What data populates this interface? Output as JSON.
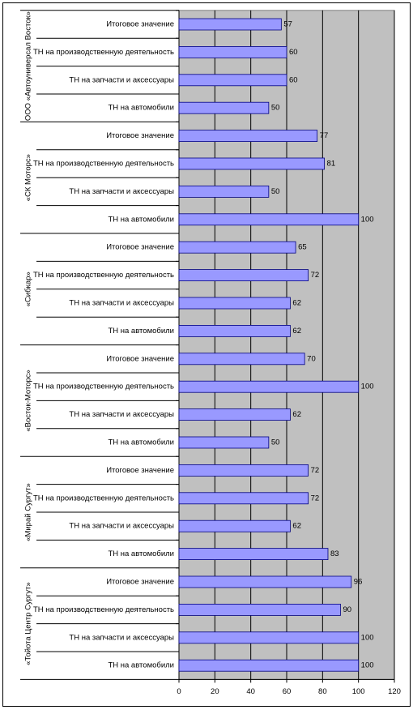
{
  "chart_data": {
    "type": "bar",
    "orientation": "horizontal",
    "groups": [
      {
        "name": "ООО «Автоуниверсал Восток»",
        "categories": [
          "Итоговое значение",
          "ТН на производственную деятельность",
          "ТН на запчасти и аксессуары",
          "ТН на автомобили"
        ],
        "values": [
          57,
          60,
          60,
          50
        ]
      },
      {
        "name": "«СК Моторс»",
        "categories": [
          "Итоговое значение",
          "ТН на производственную деятельность",
          "ТН на запчасти и аксессуары",
          "ТН на автомобили"
        ],
        "values": [
          77,
          81,
          50,
          100
        ]
      },
      {
        "name": "«Сибкар»",
        "categories": [
          "Итоговое значение",
          "ТН на производственную деятельность",
          "ТН на запчасти и аксессуары",
          "ТН на автомобили"
        ],
        "values": [
          65,
          72,
          62,
          62
        ]
      },
      {
        "name": "«Восток-Моторс»",
        "categories": [
          "Итоговое значение",
          "ТН на производственную деятельность",
          "ТН на запчасти и аксессуары",
          "ТН на автомобили"
        ],
        "values": [
          70,
          100,
          62,
          50
        ]
      },
      {
        "name": "«Мирай Сургут»",
        "categories": [
          "Итоговое значение",
          "ТН на производственную деятельность",
          "ТН на запчасти и аксессуары",
          "ТН на автомобили"
        ],
        "values": [
          72,
          72,
          62,
          83
        ]
      },
      {
        "name": "«Тойота Центр Сургут»",
        "categories": [
          "Итоговое значение",
          "ТН на производственную деятельность",
          "ТН на запчасти и аксессуары",
          "ТН на автомобили"
        ],
        "values": [
          96,
          90,
          100,
          100
        ]
      }
    ],
    "color": "#9999ff",
    "xlim": [
      0,
      120
    ],
    "xticks": [
      0,
      20,
      40,
      60,
      80,
      100,
      120
    ],
    "grid": true
  }
}
